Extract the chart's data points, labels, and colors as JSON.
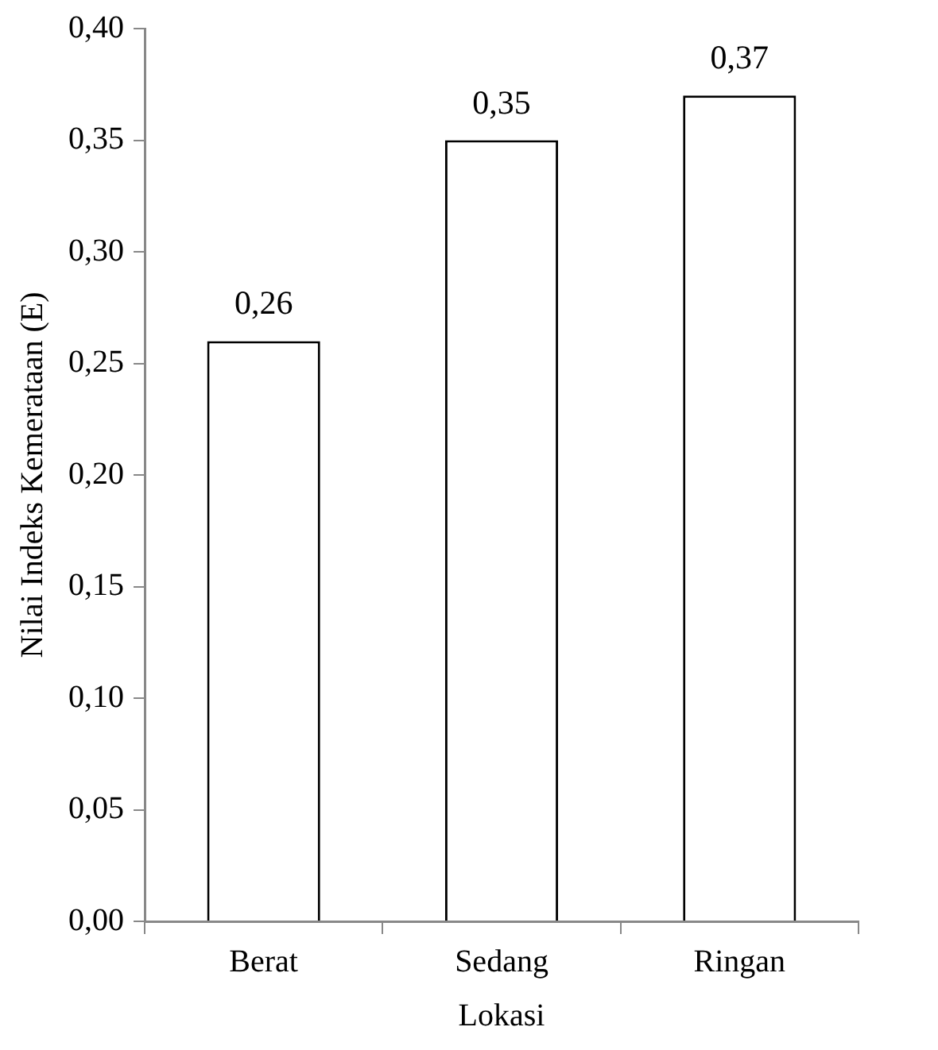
{
  "chart_data": {
    "type": "bar",
    "xlabel": "Lokasi",
    "ylabel": "Nilai Indeks Kemerataan (E)",
    "categories": [
      "Berat",
      "Sedang",
      "Ringan"
    ],
    "values": [
      0.26,
      0.35,
      0.37
    ],
    "value_labels": [
      "0,26",
      "0,35",
      "0,37"
    ],
    "color": "#ffffff",
    "ylim": [
      0,
      0.4
    ],
    "yticks": [
      {
        "value": 0,
        "label": "0,00"
      },
      {
        "value": 0.05,
        "label": "0,05"
      },
      {
        "value": 0.1,
        "label": "0,10"
      },
      {
        "value": 0.15,
        "label": "0,15"
      },
      {
        "value": 0.2,
        "label": "0,20"
      },
      {
        "value": 0.25,
        "label": "0,25"
      },
      {
        "value": 0.3,
        "label": "0,30"
      },
      {
        "value": 0.35,
        "label": "0,35"
      },
      {
        "value": 0.4,
        "label": "0,40"
      }
    ],
    "grid": false,
    "legend": false
  }
}
